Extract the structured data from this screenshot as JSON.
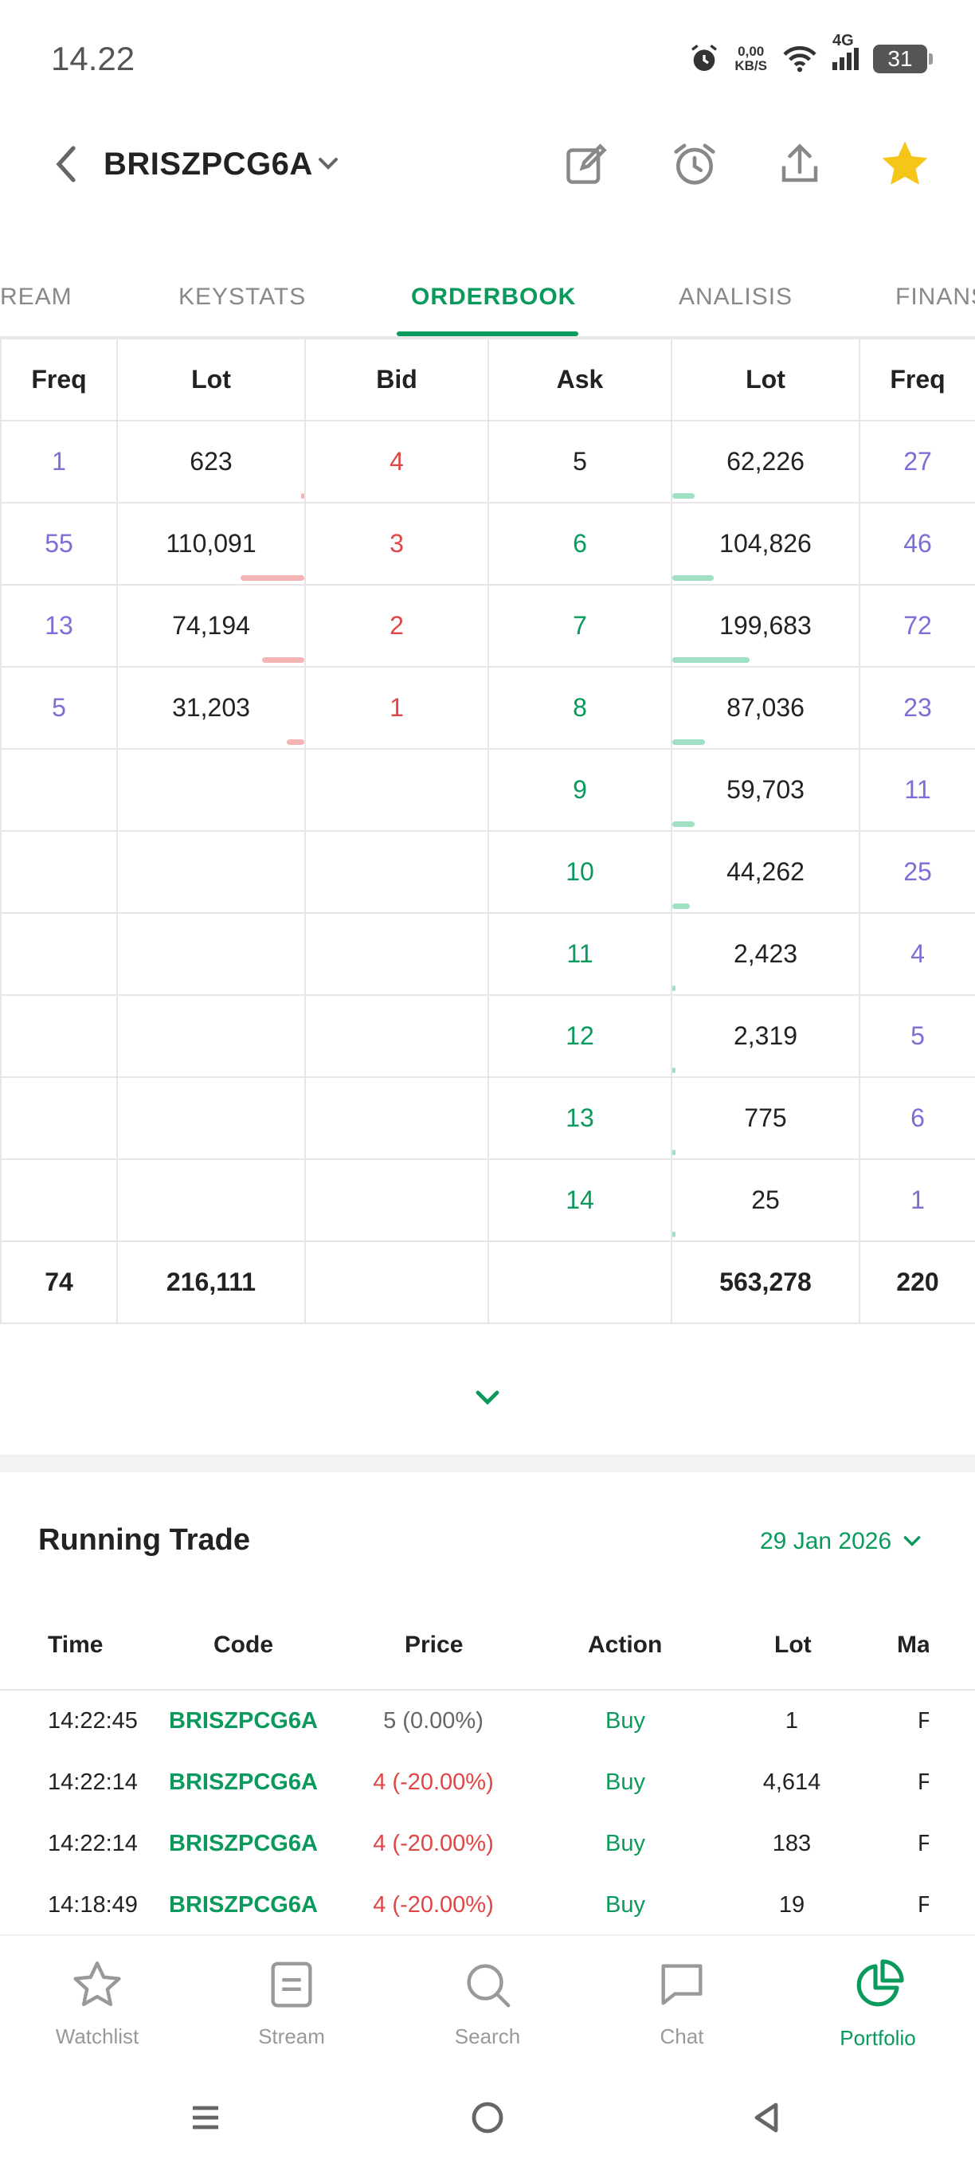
{
  "status": {
    "time": "14.22",
    "speed_value": "0,00",
    "speed_unit": "KB/S",
    "network": "4G",
    "battery": "31"
  },
  "header": {
    "title": "BRISZPCG6A"
  },
  "tabs": [
    {
      "label": "REAM"
    },
    {
      "label": "KEYSTATS"
    },
    {
      "label": "ORDERBOOK",
      "active": true
    },
    {
      "label": "ANALISIS"
    },
    {
      "label": "FINANS"
    }
  ],
  "orderbook": {
    "headers": [
      "Freq",
      "Lot",
      "Bid",
      "Ask",
      "Lot",
      "Freq"
    ],
    "rows": [
      {
        "bid_freq": "1",
        "bid_lot": "623",
        "bid": "4",
        "ask": "5",
        "ask_lot": "62,226",
        "ask_freq": "27",
        "bid_depth": 0.01,
        "ask_depth": 0.1
      },
      {
        "bid_freq": "55",
        "bid_lot": "110,091",
        "bid": "3",
        "ask": "6",
        "ask_lot": "104,826",
        "ask_freq": "46",
        "bid_depth": 0.51,
        "ask_depth": 0.19
      },
      {
        "bid_freq": "13",
        "bid_lot": "74,194",
        "bid": "2",
        "ask": "7",
        "ask_lot": "199,683",
        "ask_freq": "72",
        "bid_depth": 0.34,
        "ask_depth": 0.35
      },
      {
        "bid_freq": "5",
        "bid_lot": "31,203",
        "bid": "1",
        "ask": "8",
        "ask_lot": "87,036",
        "ask_freq": "23",
        "bid_depth": 0.14,
        "ask_depth": 0.15
      },
      {
        "bid_freq": "",
        "bid_lot": "",
        "bid": "",
        "ask": "9",
        "ask_lot": "59,703",
        "ask_freq": "11",
        "bid_depth": 0,
        "ask_depth": 0.1
      },
      {
        "bid_freq": "",
        "bid_lot": "",
        "bid": "",
        "ask": "10",
        "ask_lot": "44,262",
        "ask_freq": "25",
        "bid_depth": 0,
        "ask_depth": 0.08
      },
      {
        "bid_freq": "",
        "bid_lot": "",
        "bid": "",
        "ask": "11",
        "ask_lot": "2,423",
        "ask_freq": "4",
        "bid_depth": 0,
        "ask_depth": 0.01
      },
      {
        "bid_freq": "",
        "bid_lot": "",
        "bid": "",
        "ask": "12",
        "ask_lot": "2,319",
        "ask_freq": "5",
        "bid_depth": 0,
        "ask_depth": 0.01
      },
      {
        "bid_freq": "",
        "bid_lot": "",
        "bid": "",
        "ask": "13",
        "ask_lot": "775",
        "ask_freq": "6",
        "bid_depth": 0,
        "ask_depth": 0.01
      },
      {
        "bid_freq": "",
        "bid_lot": "",
        "bid": "",
        "ask": "14",
        "ask_lot": "25",
        "ask_freq": "1",
        "bid_depth": 0,
        "ask_depth": 0.01
      }
    ],
    "totals": {
      "bid_freq": "74",
      "bid_lot": "216,111",
      "ask_lot": "563,278",
      "ask_freq": "220"
    }
  },
  "running_trade": {
    "title": "Running Trade",
    "date": "29 Jan 2026",
    "headers": [
      "Time",
      "Code",
      "Price",
      "Action",
      "Lot",
      "Ma"
    ],
    "rows": [
      {
        "time": "14:22:45",
        "code": "BRISZPCG6A",
        "price": "5 (0.00%)",
        "price_dir": "neutral",
        "action": "Buy",
        "lot": "1",
        "market": "F"
      },
      {
        "time": "14:22:14",
        "code": "BRISZPCG6A",
        "price": "4 (-20.00%)",
        "price_dir": "down",
        "action": "Buy",
        "lot": "4,614",
        "market": "F"
      },
      {
        "time": "14:22:14",
        "code": "BRISZPCG6A",
        "price": "4 (-20.00%)",
        "price_dir": "down",
        "action": "Buy",
        "lot": "183",
        "market": "F"
      },
      {
        "time": "14:18:49",
        "code": "BRISZPCG6A",
        "price": "4 (-20.00%)",
        "price_dir": "down",
        "action": "Buy",
        "lot": "19",
        "market": "F"
      }
    ]
  },
  "bottom_nav": [
    {
      "label": "Watchlist",
      "icon": "star-outline-icon"
    },
    {
      "label": "Stream",
      "icon": "stream-icon"
    },
    {
      "label": "Search",
      "icon": "search-icon"
    },
    {
      "label": "Chat",
      "icon": "chat-icon"
    },
    {
      "label": "Portfolio",
      "icon": "pie-chart-icon",
      "active": true
    }
  ],
  "colors": {
    "accent": "#0a9a5c",
    "bid_red": "#e04646",
    "freq_purple": "#7a6fd6",
    "star_yellow": "#f5c518"
  }
}
